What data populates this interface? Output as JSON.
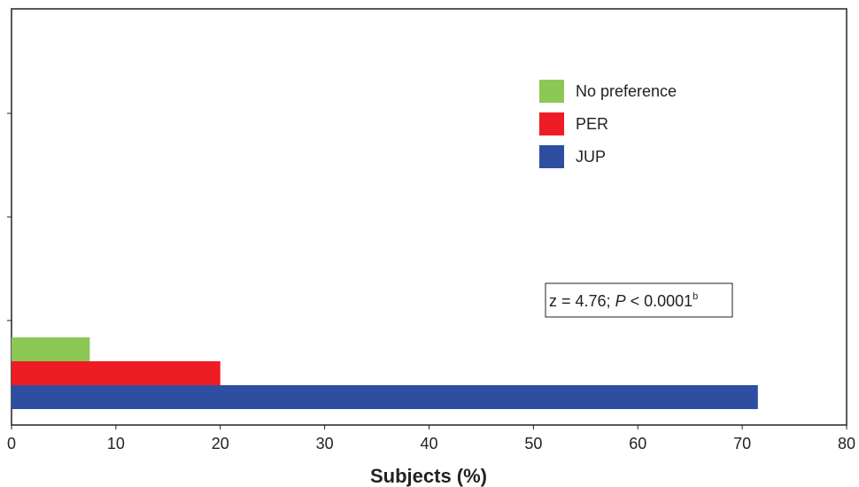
{
  "chart_data": {
    "type": "bar",
    "orientation": "horizontal",
    "series": [
      {
        "name": "No preference",
        "value": 7.5,
        "color": "#8dc755"
      },
      {
        "name": "PER",
        "value": 20,
        "color": "#ee1c25"
      },
      {
        "name": "JUP",
        "value": 71.5,
        "color": "#2e4ea2"
      }
    ],
    "xlabel": "Subjects (%)",
    "xlim": [
      0,
      80
    ],
    "xticks": [
      0,
      10,
      20,
      30,
      40,
      50,
      60,
      70,
      80
    ],
    "grid": false,
    "legend_position": "top-right",
    "legend_order": [
      "No preference",
      "PER",
      "JUP"
    ],
    "annotation": {
      "prefix": "z = 4.76; ",
      "italic": "P",
      "suffix": " < 0.0001",
      "superscript": "b"
    }
  }
}
